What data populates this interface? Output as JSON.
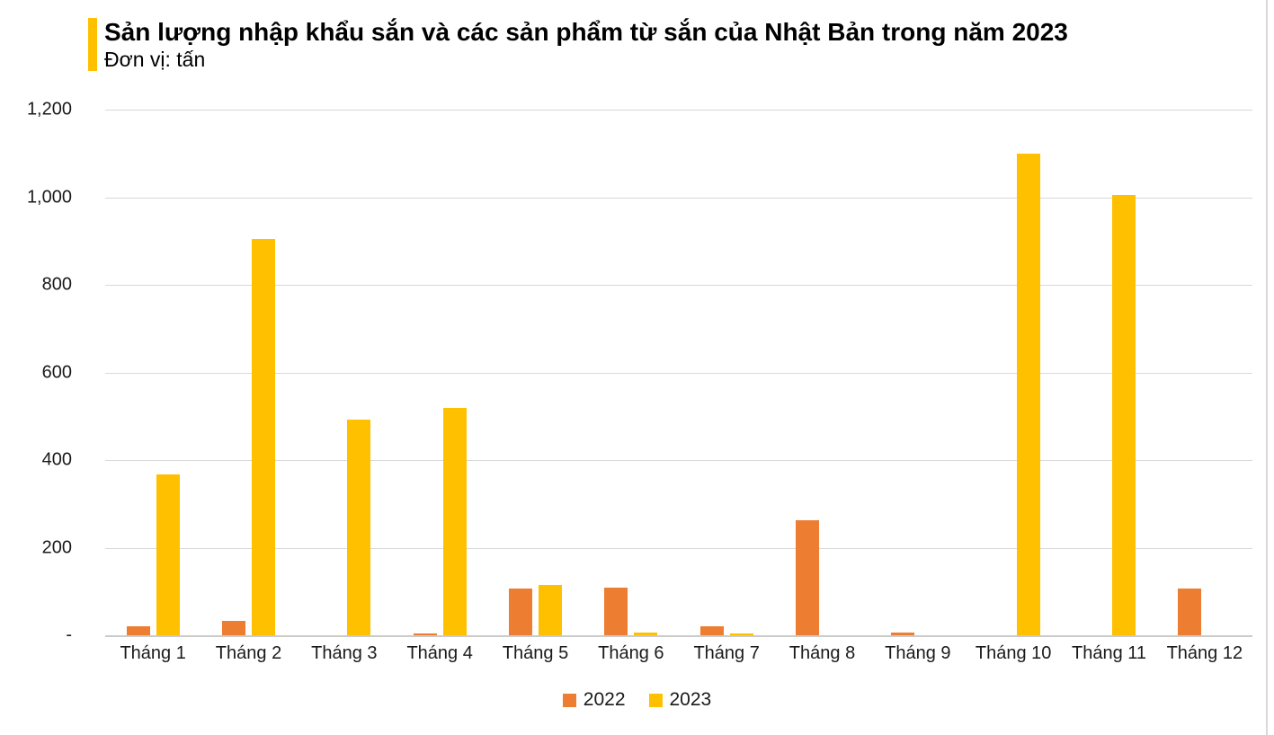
{
  "chart_data": {
    "type": "bar",
    "title": "Sản lượng nhập khẩu sắn và các sản phẩm từ sắn của Nhật Bản trong năm 2023",
    "unit_label": "Đơn vị: tấn",
    "categories": [
      "Tháng 1",
      "Tháng 2",
      "Tháng 3",
      "Tháng 4",
      "Tháng 5",
      "Tháng 6",
      "Tháng 7",
      "Tháng 8",
      "Tháng 9",
      "Tháng 10",
      "Tháng 11",
      "Tháng 12"
    ],
    "series": [
      {
        "name": "2022",
        "color": "#ED7D31",
        "values": [
          20,
          32,
          0,
          5,
          106,
          108,
          20,
          263,
          6,
          0,
          0,
          107
        ]
      },
      {
        "name": "2023",
        "color": "#FFC000",
        "values": [
          367,
          905,
          493,
          520,
          114,
          7,
          5,
          0,
          0,
          1100,
          1005,
          0
        ]
      }
    ],
    "xlabel": "",
    "ylabel": "tấn",
    "ylim": [
      0,
      1200
    ],
    "ytick_step": 200,
    "ytick_labels_top_to_bottom": [
      "1,200",
      "1,000",
      "800",
      "600",
      "400",
      "200",
      "-"
    ],
    "grid": true,
    "legend_position": "bottom",
    "colors": {
      "grid": "#D9D9D9",
      "axis_text": "#1A1A1A",
      "title_accent": "#FFC000",
      "background": "#FFFFFF",
      "page_edge": "#D9D9D9"
    }
  }
}
